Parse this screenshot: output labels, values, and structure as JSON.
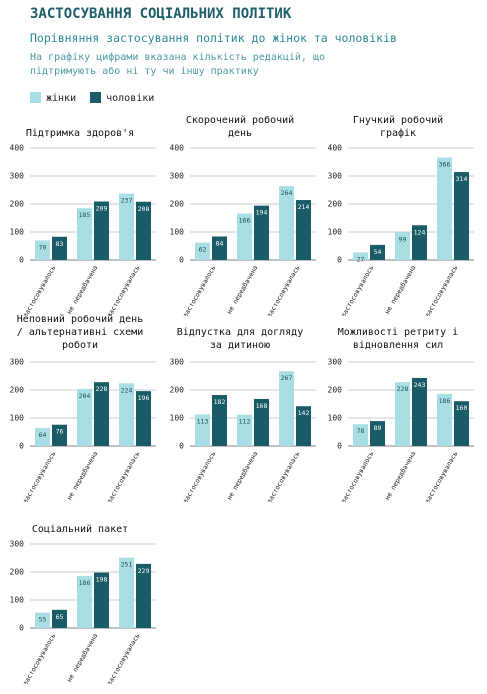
{
  "title": "ЗАСТОСУВАННЯ СОЦІАЛЬНИХ ПОЛІТИК",
  "subtitle": "Порівняння застосування політик до жінок та чоловіків",
  "note": "На графіку цифрами вказана кількість редакцій, що підтримують або ні ту чи іншу практику",
  "chart_data": [
    {
      "type": "bar",
      "title": "Підтримка здоров'я",
      "categories": [
        "не застосовувалось",
        "не передбачена",
        "застосовувалась"
      ],
      "series": [
        {
          "name": "жінки",
          "color": "#a9dfe4",
          "values": [
            70,
            185,
            237
          ]
        },
        {
          "name": "чоловіки",
          "color": "#195b66",
          "values": [
            83,
            209,
            208
          ]
        }
      ],
      "ylim": [
        0,
        400
      ],
      "yticks": [
        0,
        100,
        200,
        300,
        400
      ],
      "grid": true
    },
    {
      "type": "bar",
      "title": "Скорочений робочий день",
      "categories": [
        "не застосовувалось",
        "не передбачена",
        "застосовувалась"
      ],
      "series": [
        {
          "name": "жінки",
          "color": "#a9dfe4",
          "values": [
            62,
            166,
            264
          ]
        },
        {
          "name": "чоловіки",
          "color": "#195b66",
          "values": [
            84,
            194,
            214
          ]
        }
      ],
      "ylim": [
        0,
        400
      ],
      "yticks": [
        0,
        100,
        200,
        300,
        400
      ],
      "grid": true
    },
    {
      "type": "bar",
      "title": "Гнучкий робочий графік",
      "categories": [
        "не застосовувалось",
        "не передбачена",
        "застосовувалась"
      ],
      "series": [
        {
          "name": "жінки",
          "color": "#a9dfe4",
          "values": [
            27,
            99,
            366
          ]
        },
        {
          "name": "чоловіки",
          "color": "#195b66",
          "values": [
            54,
            124,
            314
          ]
        }
      ],
      "ylim": [
        0,
        400
      ],
      "yticks": [
        0,
        100,
        200,
        300,
        400
      ],
      "grid": true
    },
    {
      "type": "bar",
      "title": "Неповний робочий день / альтернативні схеми роботи",
      "categories": [
        "не застосовувалось",
        "не передбачена",
        "застосовувалась"
      ],
      "series": [
        {
          "name": "жінки",
          "color": "#a9dfe4",
          "values": [
            64,
            204,
            224
          ]
        },
        {
          "name": "чоловіки",
          "color": "#195b66",
          "values": [
            76,
            228,
            196
          ]
        }
      ],
      "ylim": [
        0,
        300
      ],
      "yticks": [
        0,
        100,
        200,
        300
      ],
      "grid": true
    },
    {
      "type": "bar",
      "title": "Відпустка для догляду за дитиною",
      "categories": [
        "не застосовувалось",
        "не передбачена",
        "застосовувалась"
      ],
      "series": [
        {
          "name": "жінки",
          "color": "#a9dfe4",
          "values": [
            113,
            112,
            267
          ]
        },
        {
          "name": "чоловіки",
          "color": "#195b66",
          "values": [
            182,
            168,
            142
          ]
        }
      ],
      "ylim": [
        0,
        300
      ],
      "yticks": [
        0,
        100,
        200,
        300
      ],
      "grid": true
    },
    {
      "type": "bar",
      "title": "Можливості ретриту і відновлення сил",
      "categories": [
        "не застосовувалось",
        "не передбачена",
        "застосовувалась"
      ],
      "series": [
        {
          "name": "жінки",
          "color": "#a9dfe4",
          "values": [
            78,
            228,
            186
          ]
        },
        {
          "name": "чоловіки",
          "color": "#195b66",
          "values": [
            89,
            243,
            160
          ]
        }
      ],
      "ylim": [
        0,
        300
      ],
      "yticks": [
        0,
        100,
        200,
        300
      ],
      "grid": true
    },
    {
      "type": "bar",
      "title": "Соціальний пакет",
      "categories": [
        "не застосовувалось",
        "не передбачена",
        "застосовувалась"
      ],
      "series": [
        {
          "name": "жінки",
          "color": "#a9dfe4",
          "values": [
            55,
            186,
            251
          ]
        },
        {
          "name": "чоловіки",
          "color": "#195b66",
          "values": [
            65,
            198,
            229
          ]
        }
      ],
      "ylim": [
        0,
        300
      ],
      "yticks": [
        0,
        100,
        200,
        300
      ],
      "grid": true
    }
  ]
}
